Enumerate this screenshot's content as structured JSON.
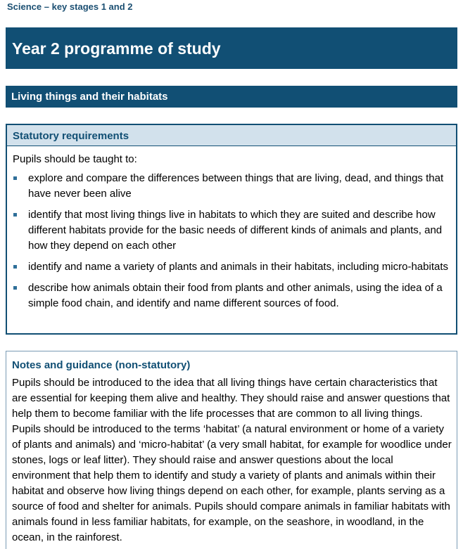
{
  "running_head": "Science – key stages 1 and 2",
  "page_title": "Year 2 programme of study",
  "section_title": "Living things and their habitats",
  "statutory": {
    "heading": "Statutory requirements",
    "intro": "Pupils should be taught to:",
    "items": [
      "explore and compare the differences between things that are living, dead, and things that have never been alive",
      "identify that most living things live in habitats to which they are suited and describe how different habitats provide for the basic needs of different kinds of animals and plants, and how they depend on each other",
      "identify and name a variety of plants and animals in their habitats, including micro-habitats",
      "describe how animals obtain their food from plants and other animals, using the idea of a simple food chain, and identify and name different sources of food."
    ]
  },
  "notes": {
    "heading": "Notes and guidance (non-statutory)",
    "text": "Pupils should be introduced to the idea that all living things have certain characteristics that are essential for keeping them alive and healthy. They should raise and answer questions that help them to become familiar with the life processes that are common to all living things. Pupils should be introduced to the terms ‘habitat’ (a natural environment or home of a variety of plants and animals) and ‘micro-habitat’ (a very small habitat, for example for woodlice under stones, logs or leaf litter). They should raise and answer questions about the local environment that help them to identify and study a variety of plants and animals within their habitat and observe how living things depend on each other, for example, plants serving as a source of food and shelter for animals. Pupils should compare animals in familiar habitats with animals found in less familiar habitats, for example, on the seashore, in woodland, in the ocean, in the rainforest."
  }
}
